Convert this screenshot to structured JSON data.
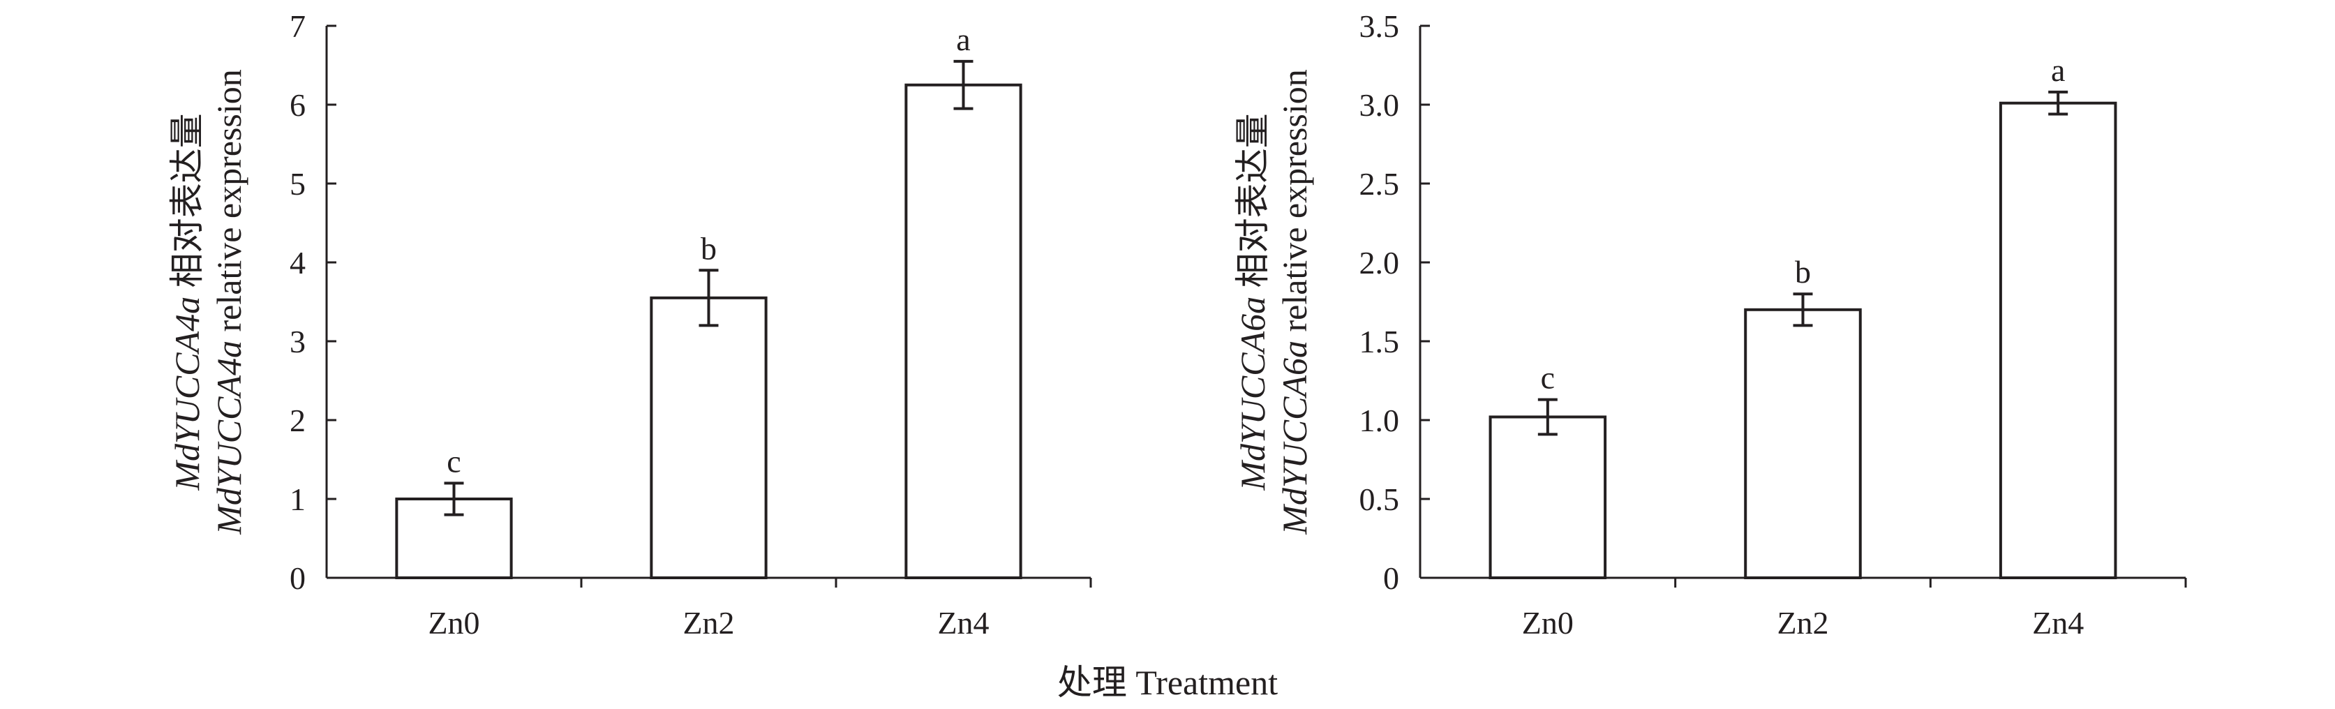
{
  "chart_data": [
    {
      "type": "bar",
      "categories": [
        "Zn0",
        "Zn2",
        "Zn4"
      ],
      "values": [
        1.0,
        3.55,
        6.25
      ],
      "errors": [
        0.2,
        0.35,
        0.3
      ],
      "significance": [
        "c",
        "b",
        "a"
      ],
      "ylim": [
        0,
        7
      ],
      "yticks": [
        0,
        1,
        2,
        3,
        4,
        5,
        6,
        7
      ],
      "ytick_labels": [
        "0",
        "1",
        "2",
        "3",
        "4",
        "5",
        "6",
        "7"
      ],
      "ylabel_gene": "MdYUCCA4a",
      "ylabel_cn": "相对表达量",
      "ylabel_en": "relative expression",
      "xlabel": "",
      "grid": false
    },
    {
      "type": "bar",
      "categories": [
        "Zn0",
        "Zn2",
        "Zn4"
      ],
      "values": [
        1.02,
        1.7,
        3.01
      ],
      "errors": [
        0.11,
        0.1,
        0.07
      ],
      "significance": [
        "c",
        "b",
        "a"
      ],
      "ylim": [
        0,
        3.5
      ],
      "yticks": [
        0,
        0.5,
        1.0,
        1.5,
        2.0,
        2.5,
        3.0,
        3.5
      ],
      "ytick_labels": [
        "0",
        "0.5",
        "1.0",
        "1.5",
        "2.0",
        "2.5",
        "3.0",
        "3.5"
      ],
      "ylabel_gene": "MdYUCCA6a",
      "ylabel_cn": "相对表达量",
      "ylabel_en": "relative expression",
      "xlabel": "",
      "grid": false
    }
  ],
  "shared_xlabel": "处理 Treatment"
}
